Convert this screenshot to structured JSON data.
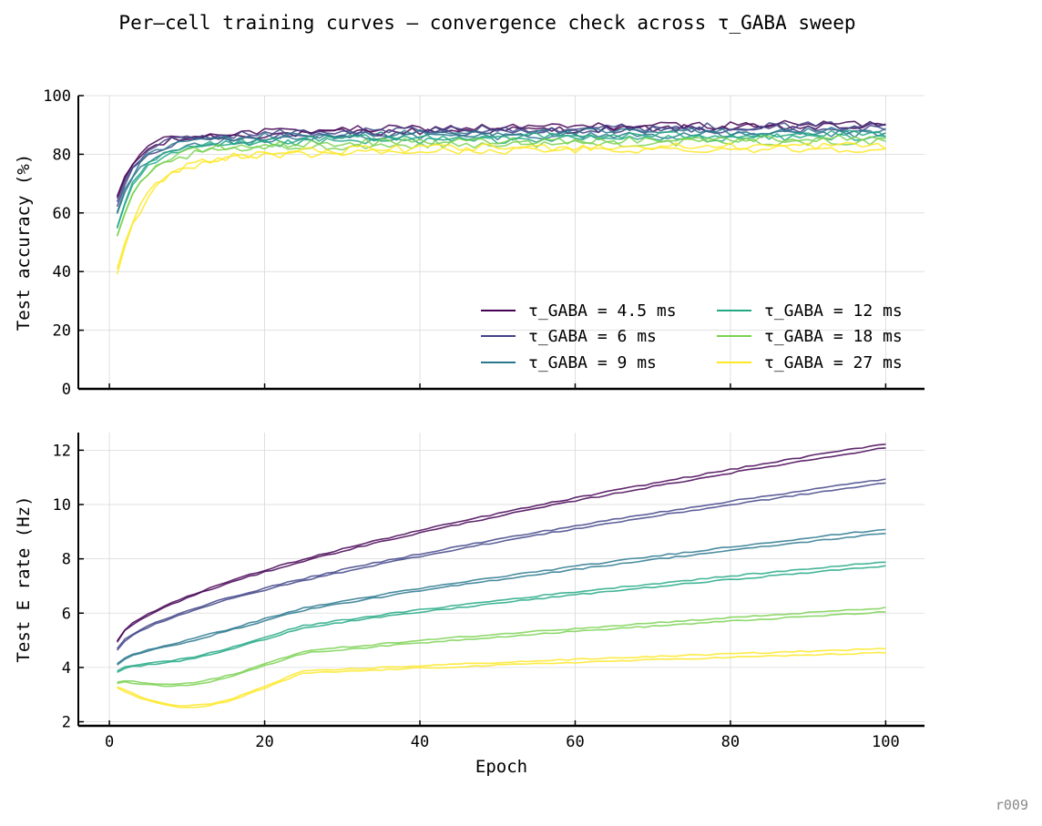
{
  "figure": {
    "title": "Per–cell training curves — convergence check across τ_GABA sweep",
    "footer_tag": "r009"
  },
  "chart_data": [
    {
      "type": "line",
      "panel": "top",
      "xlabel": "",
      "ylabel": "Test accuracy (%)",
      "xlim": [
        -4,
        105
      ],
      "ylim": [
        0,
        100
      ],
      "xticks": [
        0,
        20,
        40,
        60,
        80,
        100
      ],
      "yticks": [
        0,
        20,
        40,
        60,
        80,
        100
      ],
      "show_xtick_labels": false,
      "grid": true,
      "legend": {
        "placement": "lower-right",
        "columns": 2
      },
      "series_groups": [
        {
          "name": "τ_GABA = 4.5 ms",
          "color": "#440154",
          "start": 65,
          "early": 84,
          "plateau": 88,
          "end": 90,
          "tau": 2.2
        },
        {
          "name": "τ_GABA = 6 ms",
          "color": "#414487",
          "start": 63,
          "early": 83,
          "plateau": 87.5,
          "end": 89.5,
          "tau": 2.3
        },
        {
          "name": "τ_GABA = 9 ms",
          "color": "#2a788e",
          "start": 60,
          "early": 82,
          "plateau": 86.5,
          "end": 87.5,
          "tau": 2.5
        },
        {
          "name": "τ_GABA = 12 ms",
          "color": "#22a884",
          "start": 55,
          "early": 80,
          "plateau": 85,
          "end": 86.5,
          "tau": 2.7
        },
        {
          "name": "τ_GABA = 18 ms",
          "color": "#7ad151",
          "start": 52,
          "early": 79,
          "plateau": 83.5,
          "end": 85,
          "tau": 3.0
        },
        {
          "name": "τ_GABA = 27 ms",
          "color": "#fde725",
          "start": 40,
          "early": 74,
          "plateau": 81.5,
          "end": 82.5,
          "tau": 3.4
        }
      ]
    },
    {
      "type": "line",
      "panel": "bottom",
      "xlabel": "Epoch",
      "ylabel": "Test E rate (Hz)",
      "xlim": [
        -4,
        105
      ],
      "ylim": [
        1.85,
        12.65
      ],
      "xticks": [
        0,
        20,
        40,
        60,
        80,
        100
      ],
      "yticks": [
        2,
        4,
        6,
        8,
        10,
        12
      ],
      "show_xtick_labels": true,
      "grid": true,
      "series_groups": [
        {
          "name": "τ_GABA = 4.5 ms",
          "color": "#440154",
          "start": 4.95,
          "end": 12.15,
          "dip": 0
        },
        {
          "name": "τ_GABA = 6 ms",
          "color": "#414487",
          "start": 4.65,
          "end": 10.85,
          "dip": 0
        },
        {
          "name": "τ_GABA = 9 ms",
          "color": "#2a788e",
          "start": 4.1,
          "end": 9.0,
          "dip": 0.25
        },
        {
          "name": "τ_GABA = 12 ms",
          "color": "#22a884",
          "start": 3.85,
          "end": 7.8,
          "dip": 0.45
        },
        {
          "name": "τ_GABA = 18 ms",
          "color": "#7ad151",
          "start": 3.45,
          "end": 6.1,
          "dip": 0.7
        },
        {
          "name": "τ_GABA = 27 ms",
          "color": "#fde725",
          "start": 3.25,
          "end": 4.6,
          "dip": 1.05
        }
      ]
    }
  ]
}
